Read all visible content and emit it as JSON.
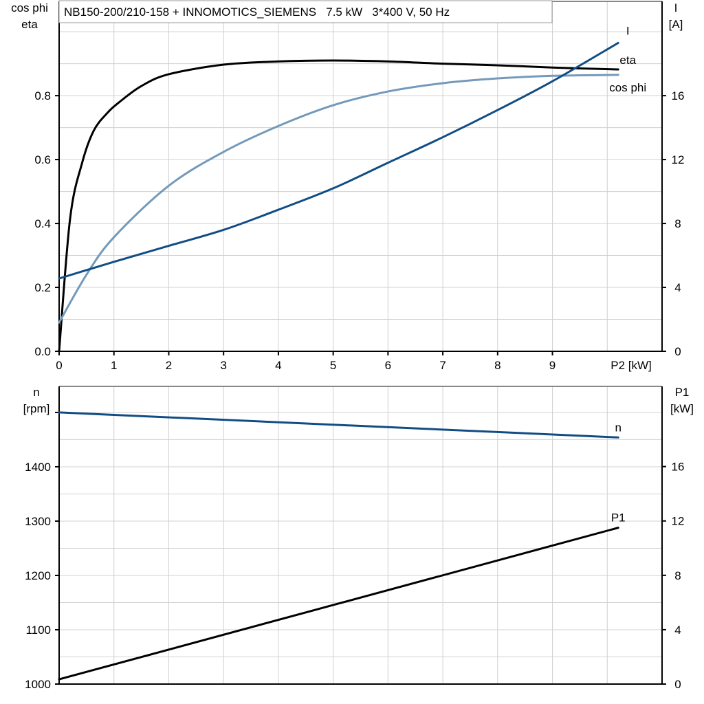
{
  "title": "NB150-200/210-158 + INNOMOTICS_SIEMENS   7.5 kW   3*400 V, 50 Hz",
  "colors": {
    "eta": "#000000",
    "cos_phi": "#7399bb",
    "I": "#114d85",
    "n": "#114d85",
    "P1": "#000000",
    "grid": "#d0d0d0"
  },
  "chart_data": [
    {
      "type": "line",
      "xlabel": "P2 [kW]",
      "xlim": [
        0,
        11
      ],
      "xticks": [
        "0",
        "1",
        "2",
        "3",
        "4",
        "5",
        "6",
        "7",
        "8",
        "9"
      ],
      "grid": true,
      "ylabel_left": [
        "cos phi",
        "eta"
      ],
      "ylim_left": [
        0,
        1.095
      ],
      "yticks_left": [
        "0.0",
        "0.2",
        "0.4",
        "0.6",
        "0.8"
      ],
      "ylabel_right": [
        "I",
        "[A]"
      ],
      "ylim_right": [
        0,
        21.9
      ],
      "yticks_right": [
        "0",
        "4",
        "8",
        "12",
        "16"
      ],
      "series": [
        {
          "name": "eta",
          "axis": "left",
          "color": "#000000",
          "x": [
            0,
            0.2,
            0.42,
            0.63,
            0.87,
            1.1,
            1.5,
            2,
            3,
            4,
            5,
            6,
            7,
            8,
            9,
            10.2
          ],
          "y": [
            0,
            0.415,
            0.59,
            0.69,
            0.744,
            0.78,
            0.83,
            0.867,
            0.897,
            0.907,
            0.91,
            0.907,
            0.9,
            0.895,
            0.888,
            0.882
          ]
        },
        {
          "name": "cos phi",
          "axis": "left",
          "color": "#7399bb",
          "x": [
            0,
            0.5,
            1,
            2,
            3,
            4,
            5,
            6,
            7,
            8,
            9,
            10.2
          ],
          "y": [
            0.09,
            0.24,
            0.357,
            0.518,
            0.624,
            0.705,
            0.77,
            0.813,
            0.839,
            0.854,
            0.862,
            0.865
          ]
        },
        {
          "name": "I",
          "axis": "right",
          "color": "#114d85",
          "x": [
            0,
            1,
            2,
            3,
            4,
            5,
            6,
            7,
            8,
            9,
            10.2
          ],
          "y": [
            4.56,
            5.6,
            6.6,
            7.6,
            8.86,
            10.2,
            11.8,
            13.4,
            15.1,
            16.9,
            19.3
          ]
        }
      ]
    },
    {
      "type": "line",
      "xlim": [
        0,
        11
      ],
      "grid": true,
      "ylabel_left": [
        "n",
        "[rpm]"
      ],
      "ylim_left": [
        1000,
        1548
      ],
      "yticks_left": [
        "1000",
        "1100",
        "1200",
        "1300",
        "1400"
      ],
      "ylabel_right": [
        "P1",
        "[kW]"
      ],
      "ylim_right": [
        0,
        21.9
      ],
      "yticks_right": [
        "0",
        "4",
        "8",
        "12",
        "16"
      ],
      "series": [
        {
          "name": "n",
          "axis": "left",
          "color": "#114d85",
          "x": [
            0,
            10.2
          ],
          "y": [
            1500,
            1454
          ]
        },
        {
          "name": "P1",
          "axis": "right",
          "color": "#000000",
          "x": [
            0,
            10.2
          ],
          "y": [
            0.35,
            11.5
          ]
        }
      ]
    }
  ]
}
